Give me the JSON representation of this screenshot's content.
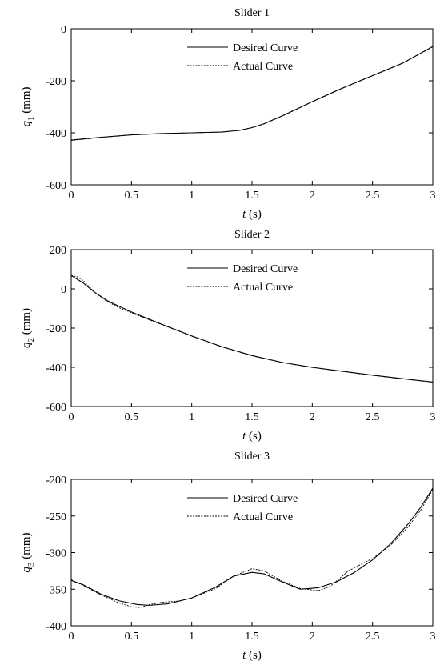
{
  "chart_data": [
    {
      "type": "line",
      "title": "Slider 1",
      "xlabel_var": "t",
      "xlabel_unit": " (s)",
      "ylabel_var": "q",
      "ylabel_sub": "1",
      "ylabel_unit": " (mm)",
      "xlim": [
        0,
        3
      ],
      "ylim": [
        -600,
        0
      ],
      "xticks": [
        0,
        0.5,
        1,
        1.5,
        2,
        2.5,
        3
      ],
      "yticks": [
        0,
        -200,
        -400,
        -600
      ],
      "legend": "top-right",
      "series": [
        {
          "name": "Desired Curve",
          "style": "solid",
          "x": [
            0,
            0.25,
            0.5,
            0.75,
            1.0,
            1.25,
            1.4,
            1.5,
            1.6,
            1.75,
            2.0,
            2.25,
            2.5,
            2.75,
            3.0
          ],
          "y": [
            -428,
            -417,
            -408,
            -403,
            -400,
            -397,
            -390,
            -380,
            -365,
            -335,
            -280,
            -228,
            -180,
            -132,
            -68
          ]
        },
        {
          "name": "Actual Curve",
          "style": "dotted",
          "x": [
            0,
            0.25,
            0.5,
            0.75,
            1.0,
            1.25,
            1.4,
            1.5,
            1.6,
            1.75,
            2.0,
            2.25,
            2.5,
            2.75,
            3.0
          ],
          "y": [
            -429,
            -418,
            -408,
            -403,
            -400,
            -397,
            -391,
            -380,
            -366,
            -336,
            -281,
            -229,
            -181,
            -133,
            -69
          ]
        }
      ]
    },
    {
      "type": "line",
      "title": "Slider 2",
      "xlabel_var": "t",
      "xlabel_unit": " (s)",
      "ylabel_var": "q",
      "ylabel_sub": "2",
      "ylabel_unit": " (mm)",
      "xlim": [
        0,
        3
      ],
      "ylim": [
        -600,
        200
      ],
      "xticks": [
        0,
        0.5,
        1,
        1.5,
        2,
        2.5,
        3
      ],
      "yticks": [
        200,
        0,
        -200,
        -400,
        -600
      ],
      "legend": "top-right",
      "series": [
        {
          "name": "Desired Curve",
          "style": "solid",
          "x": [
            0,
            0.1,
            0.2,
            0.3,
            0.4,
            0.5,
            0.75,
            1.0,
            1.25,
            1.5,
            1.75,
            2.0,
            2.25,
            2.5,
            2.75,
            3.0
          ],
          "y": [
            68,
            30,
            -20,
            -60,
            -90,
            -118,
            -180,
            -240,
            -295,
            -340,
            -375,
            -400,
            -420,
            -440,
            -458,
            -475
          ]
        },
        {
          "name": "Actual Curve",
          "style": "dotted",
          "x": [
            0,
            0.05,
            0.1,
            0.15,
            0.2,
            0.3,
            0.4,
            0.5,
            0.75,
            1.0,
            1.25,
            1.5,
            1.75,
            2.0,
            2.25,
            2.5,
            2.75,
            3.0
          ],
          "y": [
            68,
            62,
            42,
            10,
            -20,
            -65,
            -97,
            -122,
            -182,
            -241,
            -296,
            -341,
            -376,
            -401,
            -421,
            -441,
            -459,
            -476
          ]
        }
      ]
    },
    {
      "type": "line",
      "title": "Slider 3",
      "xlabel_var": "t",
      "xlabel_unit": " (s)",
      "ylabel_var": "q",
      "ylabel_sub": "3",
      "ylabel_unit": " (mm)",
      "xlim": [
        0,
        3
      ],
      "ylim": [
        -400,
        -200
      ],
      "xticks": [
        0,
        0.5,
        1,
        1.5,
        2,
        2.5,
        3
      ],
      "yticks": [
        -200,
        -250,
        -300,
        -350,
        -400
      ],
      "legend": "top-right",
      "series": [
        {
          "name": "Desired Curve",
          "style": "solid",
          "x": [
            0,
            0.1,
            0.25,
            0.4,
            0.55,
            0.65,
            0.8,
            1.0,
            1.2,
            1.35,
            1.5,
            1.6,
            1.75,
            1.9,
            2.05,
            2.2,
            2.35,
            2.5,
            2.65,
            2.8,
            2.9,
            3.0
          ],
          "y": [
            -338,
            -344,
            -357,
            -366,
            -371,
            -372,
            -370,
            -362,
            -347,
            -332,
            -327,
            -329,
            -340,
            -350,
            -348,
            -340,
            -327,
            -310,
            -288,
            -260,
            -238,
            -212
          ]
        },
        {
          "name": "Actual Curve",
          "style": "dotted",
          "x": [
            0,
            0.1,
            0.25,
            0.4,
            0.5,
            0.57,
            0.65,
            0.75,
            0.9,
            1.0,
            1.2,
            1.35,
            1.5,
            1.6,
            1.75,
            1.9,
            2.05,
            2.15,
            2.3,
            2.5,
            2.65,
            2.8,
            2.9,
            3.0
          ],
          "y": [
            -337,
            -345,
            -358,
            -369,
            -374,
            -375,
            -371,
            -368,
            -366,
            -362,
            -349,
            -332,
            -322,
            -325,
            -339,
            -349,
            -352,
            -346,
            -325,
            -308,
            -290,
            -264,
            -242,
            -214
          ]
        }
      ]
    }
  ]
}
